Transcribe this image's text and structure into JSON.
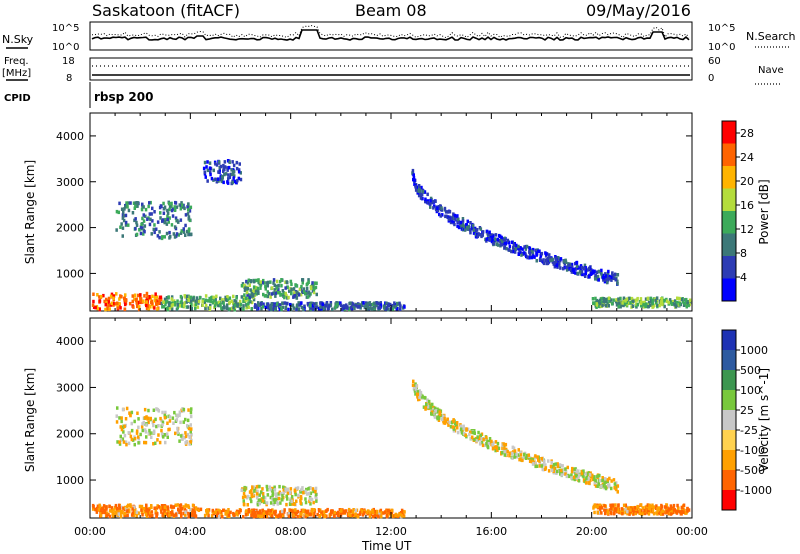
{
  "header": {
    "station": "Saskatoon (fitACF)",
    "beam": "Beam 08",
    "date": "09/May/2016"
  },
  "top_panels": {
    "nsky_label": "N.Sky",
    "nsearch_label": "N.Search",
    "freq_label": "Freq.",
    "freq_unit": "[MHz]",
    "nave_label": "Nave",
    "cpid_label": "CPID",
    "cpid_value": "rbsp 200",
    "noise_ticks": [
      "10^5",
      "10^0"
    ],
    "freq_ticks": [
      "18",
      "8"
    ],
    "nave_ticks": [
      "60",
      "0"
    ]
  },
  "axes": {
    "ylabel": "Slant Range [km]",
    "xlabel": "Time UT"
  },
  "colors": {
    "power": [
      "#0000ff",
      "#2d3cb4",
      "#3c7878",
      "#3caa5a",
      "#b4dc3c",
      "#ffb400",
      "#ff6400",
      "#ff0000"
    ],
    "velocity": [
      "#ff0000",
      "#ff6400",
      "#ffa000",
      "#ffd250",
      "#c8c8c8",
      "#78c83c",
      "#3c9650",
      "#2d5aa0",
      "#1e32b4"
    ]
  },
  "chart_data": [
    {
      "type": "heatmap",
      "name": "power",
      "x": {
        "unit": "UT hours",
        "range": [
          0,
          24
        ],
        "ticks": [
          "00:00",
          "04:00",
          "08:00",
          "12:00",
          "16:00",
          "20:00",
          "00:00"
        ]
      },
      "ylim": [
        180,
        4500
      ],
      "yticks": [
        1000,
        2000,
        3000,
        4000
      ],
      "colorbar": {
        "label": "Power [dB]",
        "ticks": [
          4,
          8,
          12,
          16,
          20,
          24,
          28
        ],
        "range": [
          0,
          30
        ]
      },
      "features": [
        {
          "t": [
            0.0,
            2.8
          ],
          "range_km": [
            200,
            600
          ],
          "value": 26
        },
        {
          "t": [
            2.8,
            6.5
          ],
          "range_km": [
            200,
            550
          ],
          "value": 14
        },
        {
          "t": [
            6.5,
            12.5
          ],
          "range_km": [
            200,
            400
          ],
          "value": 8
        },
        {
          "t": [
            1.0,
            4.0
          ],
          "range_km": [
            1800,
            2600
          ],
          "value": 10
        },
        {
          "t": [
            4.5,
            6.0
          ],
          "range_km": [
            3000,
            3500
          ],
          "value": 6
        },
        {
          "t": [
            6.0,
            9.0
          ],
          "range_km": [
            500,
            900
          ],
          "value": 12
        },
        {
          "t": [
            12.8,
            21.0
          ],
          "range_km": [
            900,
            3300
          ],
          "value": 5
        },
        {
          "t": [
            20.0,
            24.0
          ],
          "range_km": [
            300,
            500
          ],
          "value": 14
        }
      ]
    },
    {
      "type": "heatmap",
      "name": "velocity",
      "x": {
        "unit": "UT hours",
        "range": [
          0,
          24
        ],
        "ticks": [
          "00:00",
          "04:00",
          "08:00",
          "12:00",
          "16:00",
          "20:00",
          "00:00"
        ]
      },
      "ylim": [
        180,
        4500
      ],
      "yticks": [
        1000,
        2000,
        3000,
        4000
      ],
      "colorbar": {
        "label": "Velocity [m s^-1]",
        "ticks": [
          1000,
          500,
          100,
          25,
          -25,
          -100,
          -500,
          -1000
        ]
      },
      "features": [
        {
          "t": [
            0.0,
            4.5
          ],
          "range_km": [
            200,
            500
          ],
          "value": -100
        },
        {
          "t": [
            4.5,
            12.5
          ],
          "range_km": [
            200,
            400
          ],
          "value": -100
        },
        {
          "t": [
            1.0,
            4.0
          ],
          "range_km": [
            1800,
            2600
          ],
          "value": 0
        },
        {
          "t": [
            6.0,
            9.0
          ],
          "range_km": [
            500,
            900
          ],
          "value": 0
        },
        {
          "t": [
            12.8,
            21.0
          ],
          "range_km": [
            900,
            3300
          ],
          "value": 0
        },
        {
          "t": [
            20.0,
            24.0
          ],
          "range_km": [
            300,
            500
          ],
          "value": -100
        }
      ]
    }
  ]
}
